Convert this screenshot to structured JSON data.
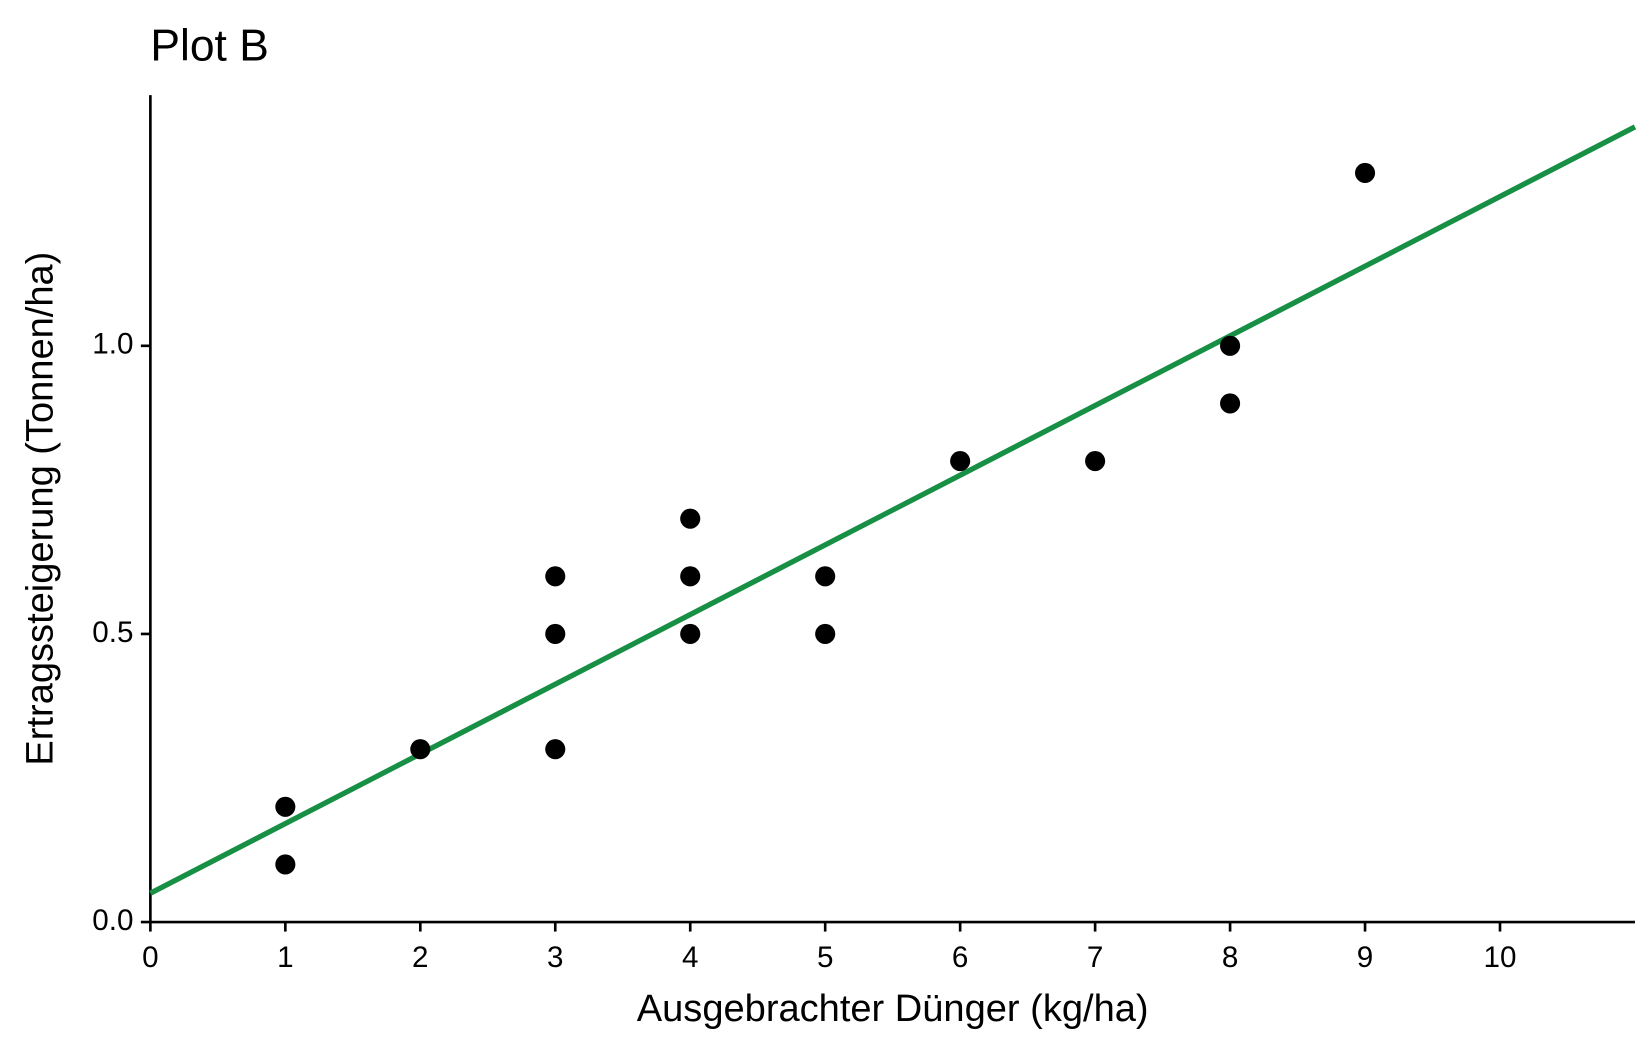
{
  "chart_data": {
    "type": "scatter",
    "title": "Plot B",
    "x_label": "Ausgebrachter Dünger (kg/ha)",
    "y_label": "Ertragssteigerung (Tonnen/ha)",
    "x": [
      1,
      1,
      2,
      3,
      3,
      3,
      4,
      4,
      4,
      5,
      5,
      6,
      7,
      8,
      8,
      9
    ],
    "values": [
      0.2,
      0.1,
      0.3,
      0.6,
      0.5,
      0.3,
      0.7,
      0.6,
      0.5,
      0.6,
      0.5,
      0.8,
      0.8,
      1.0,
      0.9,
      1.3
    ],
    "color": "#000000",
    "fit_line": {
      "x": [
        0,
        11
      ],
      "values": [
        0.05,
        1.38
      ],
      "color": "#178f44"
    },
    "xlim": [
      0,
      11
    ],
    "ylim": [
      0,
      1.435
    ],
    "xticks": [
      0,
      1,
      2,
      3,
      4,
      5,
      6,
      7,
      8,
      9,
      10
    ],
    "yticks": [
      {
        "value": 0,
        "label": "0.0"
      },
      0.5,
      {
        "value": 1,
        "label": "1.0"
      }
    ],
    "grid": false
  }
}
